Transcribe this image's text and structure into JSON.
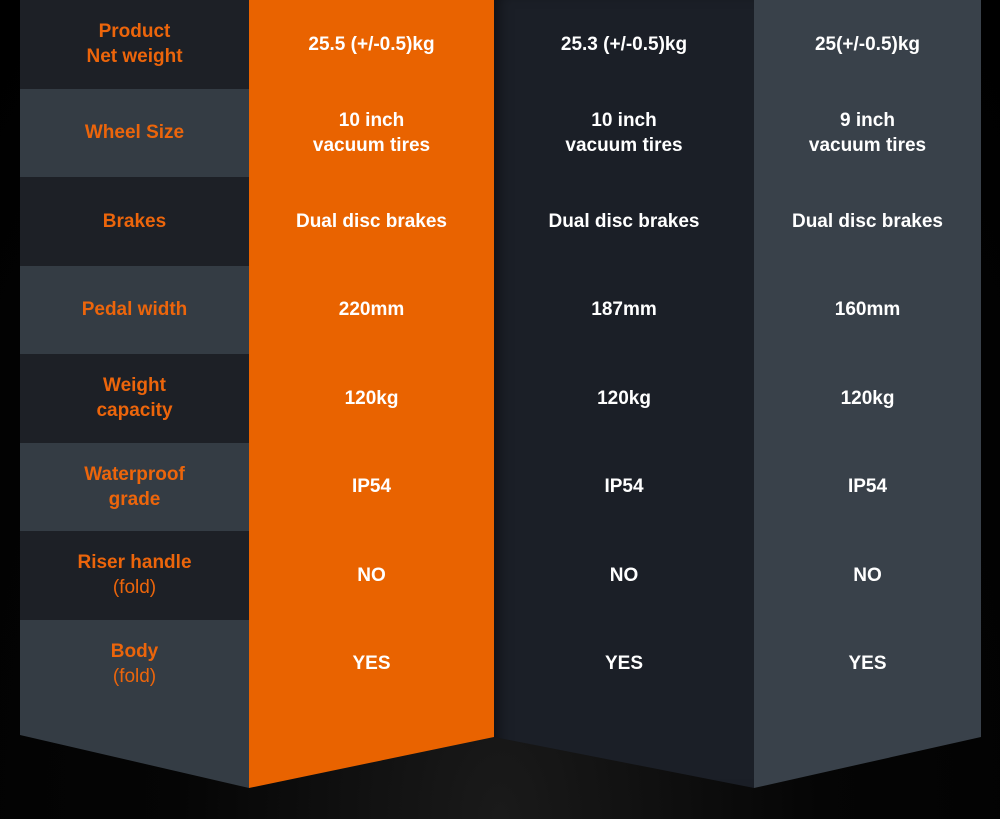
{
  "colors": {
    "accent": "#e96300",
    "label_text": "#ec650b"
  },
  "rows": [
    {
      "label": "Product\nNet weight",
      "values": [
        "25.5 (+/-0.5)kg",
        "25.3 (+/-0.5)kg",
        "25(+/-0.5)kg"
      ]
    },
    {
      "label": "Wheel Size",
      "values": [
        "10 inch\nvacuum tires",
        "10 inch\nvacuum tires",
        "9 inch\nvacuum tires"
      ]
    },
    {
      "label": "Brakes",
      "values": [
        "Dual disc brakes",
        "Dual disc brakes",
        "Dual disc brakes"
      ]
    },
    {
      "label": "Pedal width",
      "values": [
        "220mm",
        "187mm",
        "160mm"
      ]
    },
    {
      "label": "Weight\ncapacity",
      "values": [
        "120kg",
        "120kg",
        "120kg"
      ]
    },
    {
      "label": "Waterproof\ngrade",
      "values": [
        "IP54",
        "IP54",
        "IP54"
      ]
    },
    {
      "label": "Riser handle",
      "label_sub": "(fold)",
      "values": [
        "NO",
        "NO",
        "NO"
      ]
    },
    {
      "label": "Body",
      "label_sub": "(fold)",
      "values": [
        "YES",
        "YES",
        "YES"
      ]
    }
  ]
}
